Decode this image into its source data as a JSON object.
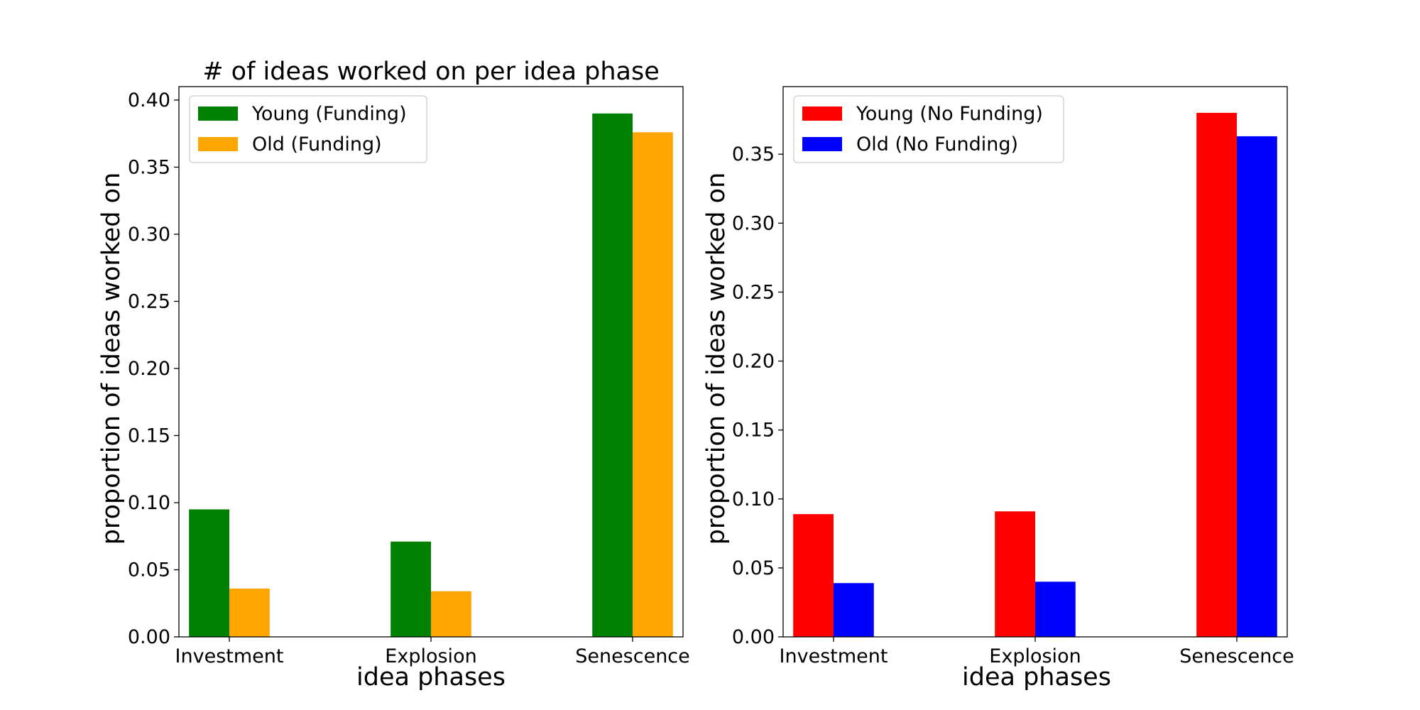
{
  "chart_data": [
    {
      "type": "bar",
      "title": "# of ideas worked on per idea phase",
      "xlabel": "idea phases",
      "ylabel": "proportion of ideas worked on",
      "categories": [
        "Investment",
        "Explosion",
        "Senescence"
      ],
      "series": [
        {
          "name": "Young (Funding)",
          "color": "#008000",
          "values": [
            0.095,
            0.071,
            0.39
          ]
        },
        {
          "name": "Old (Funding)",
          "color": "#ffa500",
          "values": [
            0.036,
            0.034,
            0.376
          ]
        }
      ],
      "ylim": [
        0,
        0.41
      ],
      "yticks": [
        0.0,
        0.05,
        0.1,
        0.15,
        0.2,
        0.25,
        0.3,
        0.35,
        0.4
      ],
      "ytick_labels": [
        "0.00",
        "0.05",
        "0.10",
        "0.15",
        "0.20",
        "0.25",
        "0.30",
        "0.35",
        "0.40"
      ],
      "legend_position": "top-left",
      "grid": false
    },
    {
      "type": "bar",
      "title": "",
      "xlabel": "idea phases",
      "ylabel": "proportion of ideas worked on",
      "categories": [
        "Investment",
        "Explosion",
        "Senescence"
      ],
      "series": [
        {
          "name": "Young (No Funding)",
          "color": "#ff0000",
          "values": [
            0.089,
            0.091,
            0.38
          ]
        },
        {
          "name": "Old (No Funding)",
          "color": "#0000ff",
          "values": [
            0.039,
            0.04,
            0.363
          ]
        }
      ],
      "ylim": [
        0,
        0.399
      ],
      "yticks": [
        0.0,
        0.05,
        0.1,
        0.15,
        0.2,
        0.25,
        0.3,
        0.35
      ],
      "ytick_labels": [
        "0.00",
        "0.05",
        "0.10",
        "0.15",
        "0.20",
        "0.25",
        "0.30",
        "0.35"
      ],
      "legend_position": "top-left",
      "grid": false
    }
  ]
}
